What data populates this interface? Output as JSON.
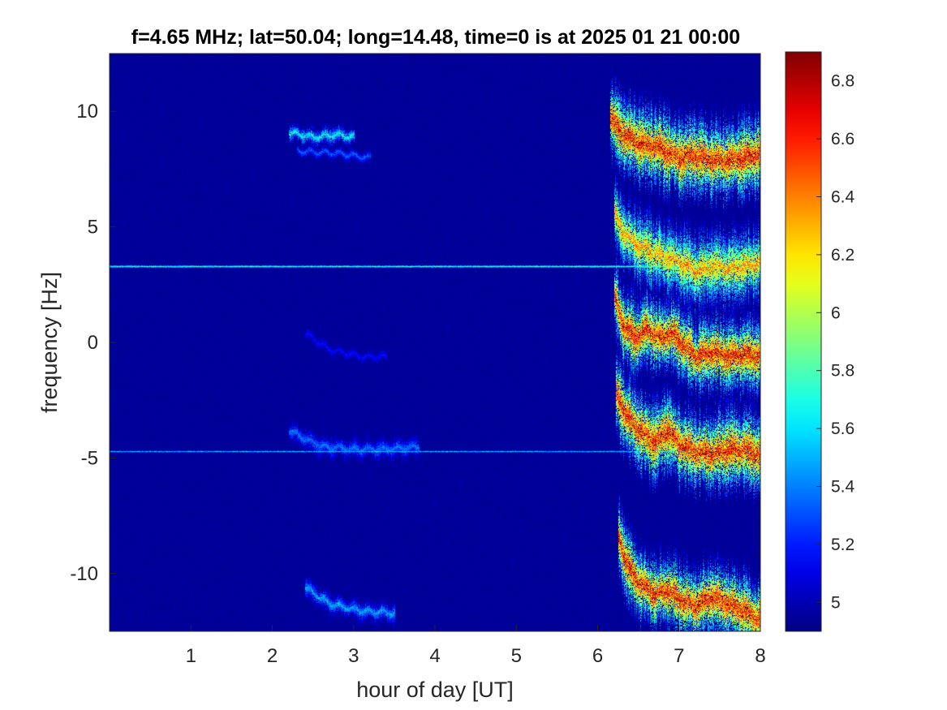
{
  "chart_data": {
    "type": "heatmap",
    "title": "f=4.65 MHz;  lat=50.04; long=14.48, time=0 is at 2025 01 21 00:00",
    "xlabel": "hour of day [UT]",
    "ylabel": "frequency [Hz]",
    "xlim": [
      0,
      8
    ],
    "ylim": [
      -12.5,
      12.5
    ],
    "xticks": [
      1,
      2,
      3,
      4,
      5,
      6,
      7,
      8
    ],
    "xtick_labels": [
      "1",
      "2",
      "3",
      "4",
      "5",
      "6",
      "7",
      "8"
    ],
    "yticks": [
      10,
      5,
      0,
      -5,
      -10
    ],
    "ytick_labels": [
      "10",
      "5",
      "0",
      "-5",
      "-10"
    ],
    "colorbar": {
      "colormap": "jet",
      "clim": [
        4.9,
        6.9
      ],
      "ticks": [
        6.8,
        6.6,
        6.4,
        6.2,
        6,
        5.8,
        5.6,
        5.4,
        5.2,
        5
      ],
      "tick_labels": [
        "6.8",
        "6.6",
        "6.4",
        "6.2",
        "6",
        "5.8",
        "5.6",
        "5.4",
        "5.2",
        "5"
      ]
    },
    "background_value": 4.95,
    "constant_lines": [
      {
        "frequency": 3.3,
        "x_range": [
          0,
          8
        ],
        "value": 5.7
      },
      {
        "frequency": -4.7,
        "x_range": [
          0,
          8
        ],
        "value": 5.5
      }
    ],
    "traces": [
      {
        "points": [
          [
            6.15,
            9.8
          ],
          [
            6.25,
            9.2
          ],
          [
            6.4,
            8.8
          ],
          [
            6.55,
            8.6
          ],
          [
            6.7,
            8.5
          ],
          [
            6.85,
            8.3
          ],
          [
            7.0,
            8.0
          ],
          [
            7.2,
            8.1
          ],
          [
            7.4,
            7.9
          ],
          [
            7.6,
            7.9
          ],
          [
            7.8,
            8.0
          ],
          [
            8.0,
            8.2
          ]
        ],
        "peak": 6.85,
        "spread": 2.6
      },
      {
        "points": [
          [
            6.2,
            5.6
          ],
          [
            6.3,
            4.8
          ],
          [
            6.45,
            4.3
          ],
          [
            6.6,
            4.0
          ],
          [
            6.75,
            3.8
          ],
          [
            6.9,
            3.6
          ],
          [
            7.05,
            3.4
          ],
          [
            7.2,
            3.1
          ],
          [
            7.4,
            3.3
          ],
          [
            7.6,
            3.2
          ],
          [
            7.8,
            3.3
          ],
          [
            8.0,
            3.5
          ]
        ],
        "peak": 6.5,
        "spread": 2.4
      },
      {
        "points": [
          [
            6.2,
            2.0
          ],
          [
            6.3,
            0.8
          ],
          [
            6.45,
            0.2
          ],
          [
            6.6,
            0.6
          ],
          [
            6.75,
            0.2
          ],
          [
            6.9,
            0.4
          ],
          [
            7.05,
            -0.1
          ],
          [
            7.2,
            -0.6
          ],
          [
            7.4,
            -0.4
          ],
          [
            7.6,
            -0.6
          ],
          [
            7.8,
            -0.5
          ],
          [
            8.0,
            -0.6
          ]
        ],
        "peak": 6.85,
        "spread": 2.4
      },
      {
        "points": [
          [
            6.22,
            -2.2
          ],
          [
            6.35,
            -3.2
          ],
          [
            6.5,
            -3.8
          ],
          [
            6.7,
            -4.3
          ],
          [
            6.85,
            -3.8
          ],
          [
            7.0,
            -4.4
          ],
          [
            7.2,
            -4.7
          ],
          [
            7.4,
            -4.8
          ],
          [
            7.6,
            -4.6
          ],
          [
            7.8,
            -4.6
          ],
          [
            8.0,
            -4.9
          ]
        ],
        "peak": 6.85,
        "spread": 2.6
      },
      {
        "points": [
          [
            6.25,
            -8.4
          ],
          [
            6.35,
            -9.6
          ],
          [
            6.5,
            -10.4
          ],
          [
            6.7,
            -10.9
          ],
          [
            6.85,
            -10.7
          ],
          [
            7.0,
            -11.1
          ],
          [
            7.2,
            -11.4
          ],
          [
            7.4,
            -11.0
          ],
          [
            7.6,
            -11.3
          ],
          [
            7.8,
            -11.6
          ],
          [
            8.0,
            -12.0
          ]
        ],
        "peak": 6.85,
        "spread": 2.4
      },
      {
        "points": [
          [
            2.2,
            9.1
          ],
          [
            2.5,
            8.9
          ],
          [
            2.8,
            9.0
          ],
          [
            3.0,
            8.9
          ]
        ],
        "peak": 5.75,
        "spread": 0.6
      },
      {
        "points": [
          [
            2.3,
            8.3
          ],
          [
            2.8,
            8.2
          ],
          [
            3.2,
            8.0
          ]
        ],
        "peak": 5.4,
        "spread": 0.4
      },
      {
        "points": [
          [
            2.2,
            -3.8
          ],
          [
            2.6,
            -4.5
          ],
          [
            3.0,
            -4.6
          ],
          [
            3.4,
            -4.6
          ],
          [
            3.8,
            -4.5
          ]
        ],
        "peak": 5.45,
        "spread": 0.7
      },
      {
        "points": [
          [
            2.4,
            -10.6
          ],
          [
            2.7,
            -11.3
          ],
          [
            3.1,
            -11.6
          ],
          [
            3.5,
            -11.7
          ]
        ],
        "peak": 5.55,
        "spread": 0.7
      },
      {
        "points": [
          [
            2.4,
            0.4
          ],
          [
            2.7,
            -0.3
          ],
          [
            3.1,
            -0.6
          ],
          [
            3.4,
            -0.6
          ]
        ],
        "peak": 5.2,
        "spread": 0.4
      }
    ]
  }
}
